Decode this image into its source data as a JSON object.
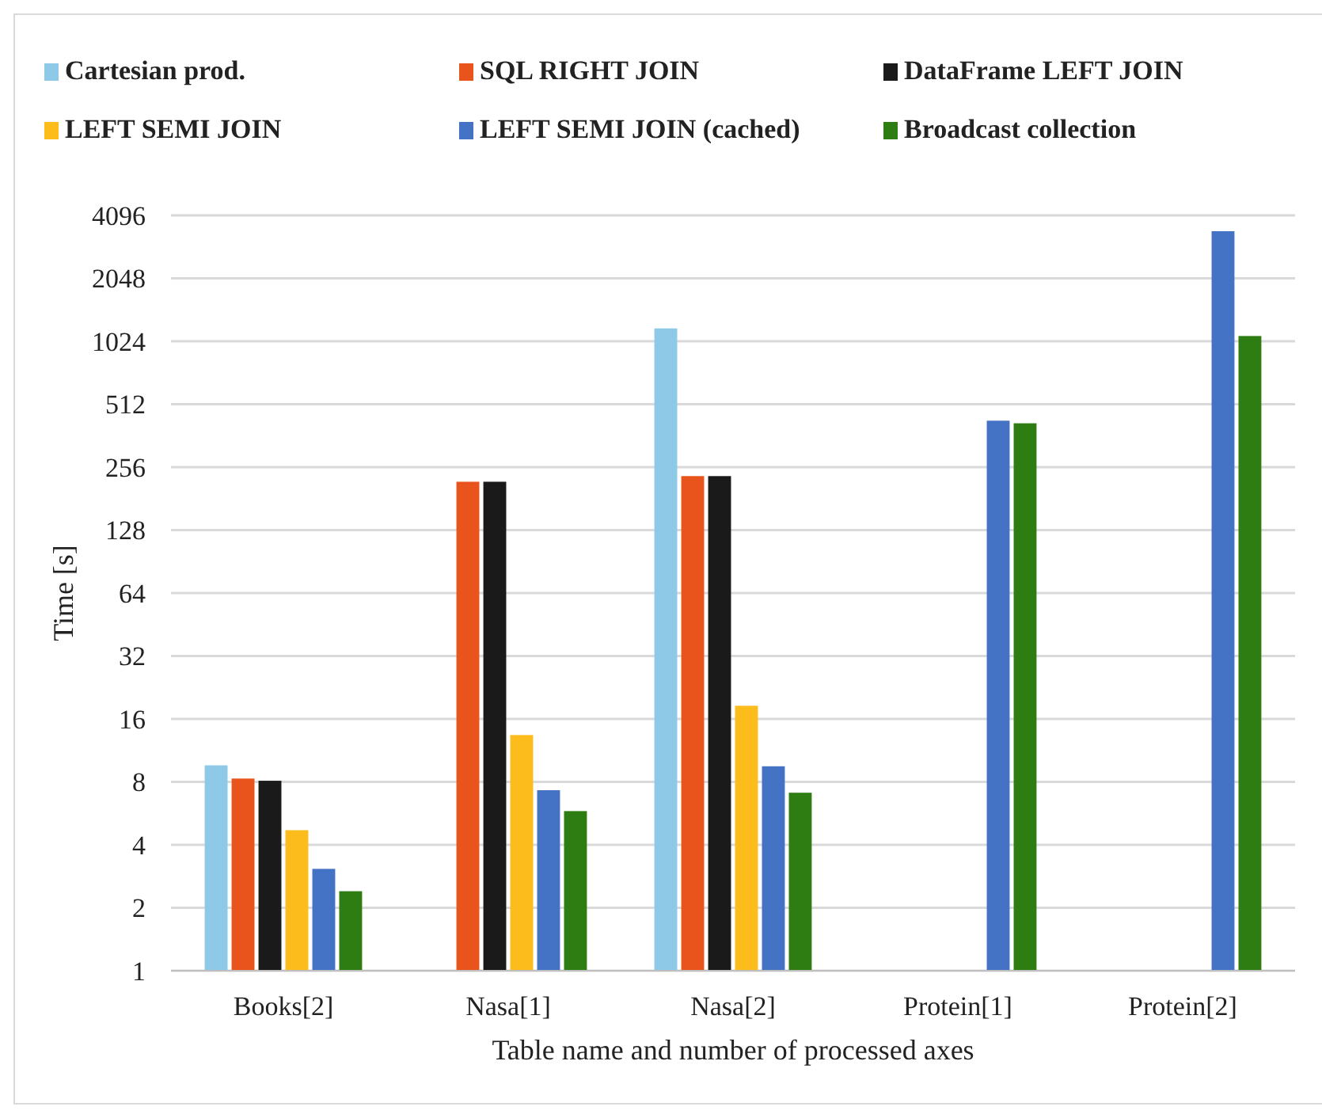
{
  "chart_data": {
    "type": "bar",
    "xlabel": "Table name and number of processed axes",
    "ylabel": "Time [s]",
    "categories": [
      "Books[2]",
      "Nasa[1]",
      "Nasa[2]",
      "Protein[1]",
      "Protein[2]"
    ],
    "series": [
      {
        "name": "Cartesian prod.",
        "color": "#8fc9e8",
        "values": [
          9.6,
          null,
          1180,
          null,
          null
        ]
      },
      {
        "name": "SQL  RIGHT JOIN",
        "color": "#e8541c",
        "values": [
          8.3,
          218,
          232,
          null,
          null
        ]
      },
      {
        "name": "DataFrame LEFT JOIN",
        "color": "#1a1a1a",
        "values": [
          8.1,
          218,
          232,
          null,
          null
        ]
      },
      {
        "name": "LEFT SEMI JOIN",
        "color": "#fbbc1c",
        "values": [
          4.7,
          13.4,
          18.5,
          null,
          null
        ]
      },
      {
        "name": "LEFT SEMI JOIN (cached)",
        "color": "#4472c4",
        "values": [
          3.07,
          7.3,
          9.5,
          427,
          3440
        ]
      },
      {
        "name": "Broadcast collection",
        "color": "#2e7d12",
        "values": [
          2.4,
          5.8,
          7.1,
          415,
          1085
        ]
      }
    ],
    "log": "y",
    "ylim": [
      1,
      4096
    ],
    "yticks": [
      1,
      2,
      4,
      8,
      16,
      32,
      64,
      128,
      256,
      512,
      1024,
      2048,
      4096
    ],
    "grid": "y",
    "legend": "top"
  }
}
